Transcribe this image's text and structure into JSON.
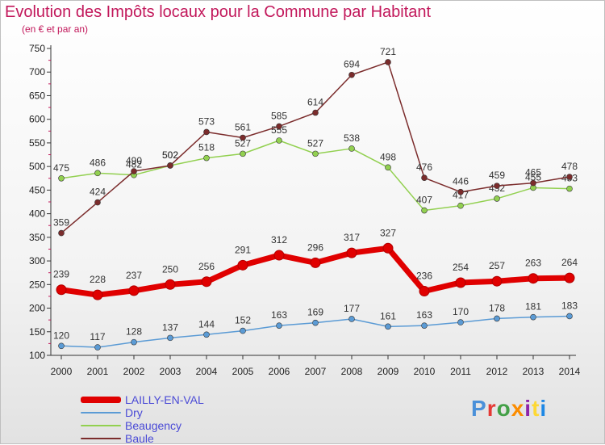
{
  "header": {
    "title": "Evolution des Impôts locaux pour la Commune par Habitant",
    "subtitle": "(en € et par an)"
  },
  "logo": {
    "text": "Proxiti",
    "colors": [
      "#4a90d9",
      "#e53935",
      "#43a047",
      "#fb8c00",
      "#8e24aa",
      "#fdd835",
      "#1e88e5"
    ]
  },
  "chart_data": {
    "type": "line",
    "categories": [
      "2000",
      "2001",
      "2002",
      "2003",
      "2004",
      "2005",
      "2006",
      "2007",
      "2008",
      "2009",
      "2010",
      "2011",
      "2012",
      "2013",
      "2014"
    ],
    "ylim": [
      100,
      750
    ],
    "yticks": [
      100,
      150,
      200,
      250,
      300,
      350,
      400,
      450,
      500,
      550,
      600,
      650,
      700,
      750
    ],
    "grid": false,
    "legend_position": "bottom-left",
    "series": [
      {
        "name": "LAILLY-EN-VAL",
        "color": "#e00000",
        "width": 7,
        "marker_r": 6,
        "values": [
          239,
          228,
          237,
          250,
          256,
          291,
          312,
          296,
          317,
          327,
          236,
          254,
          257,
          263,
          264
        ]
      },
      {
        "name": "Dry",
        "color": "#5b9bd5",
        "width": 1.5,
        "marker_r": 3.5,
        "values": [
          120,
          117,
          128,
          137,
          144,
          152,
          163,
          169,
          177,
          161,
          163,
          170,
          178,
          181,
          183
        ]
      },
      {
        "name": "Beaugency",
        "color": "#92d050",
        "width": 1.5,
        "marker_r": 3.5,
        "values": [
          475,
          486,
          482,
          502,
          518,
          527,
          555,
          527,
          538,
          498,
          407,
          417,
          432,
          455,
          453
        ]
      },
      {
        "name": "Baule",
        "color": "#7b2c2c",
        "width": 1.5,
        "marker_r": 3.5,
        "values": [
          359,
          424,
          490,
          502,
          573,
          561,
          585,
          614,
          694,
          721,
          476,
          446,
          459,
          465,
          478
        ]
      }
    ]
  }
}
